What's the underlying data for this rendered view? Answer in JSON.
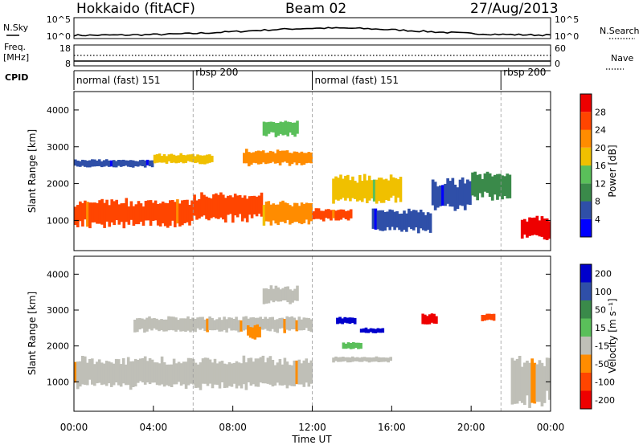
{
  "header": {
    "station": "Hokkaido (fitACF)",
    "beam": "Beam 02",
    "date": "27/Aug/2013"
  },
  "left_labels": {
    "nsky": "N.Sky",
    "freq": "Freq.",
    "freq_unit": "[MHz]",
    "cpid": "CPID",
    "nsky_top": "10^5",
    "nsky_bottom": "10^0",
    "freq_top": "18",
    "freq_bottom": "8"
  },
  "right_labels": {
    "nsearch": "N.Search",
    "nave": "Nave",
    "nsearch_top": "10^5",
    "nsearch_bottom": "10^0",
    "nave_top": "60",
    "nave_bottom": "0"
  },
  "cpid_segments": [
    {
      "label": "normal (fast) 151",
      "start": 0,
      "end": 6
    },
    {
      "label": "rbsp 200",
      "start": 6,
      "end": 12
    },
    {
      "label": "normal (fast) 151",
      "start": 12,
      "end": 21.5
    },
    {
      "label": "rbsp 200",
      "start": 21.5,
      "end": 24
    }
  ],
  "colors": {
    "power": [
      "#0000ff",
      "#2f4fa8",
      "#3a8a4a",
      "#5abf5a",
      "#f0c000",
      "#ff8c00",
      "#ff4500",
      "#ee0000"
    ],
    "velocity": [
      "#ee0000",
      "#ff4500",
      "#ff8c00",
      "#bfbfb7",
      "#5abf5a",
      "#3a8a4a",
      "#2f4fa8",
      "#0000cc"
    ]
  },
  "chart_data": [
    {
      "type": "heatmap",
      "title": "Power",
      "ylabel": "Slant Range [km]",
      "xlabel": "Time UT",
      "xlim": [
        0,
        24
      ],
      "ylim": [
        180,
        4500
      ],
      "yticks": [
        1000,
        2000,
        3000,
        4000
      ],
      "colorbar_label": "Power [dB]",
      "colorbar_ticks": [
        "4",
        "8",
        "12",
        "16",
        "20",
        "24",
        "28"
      ],
      "bands": [
        {
          "t0": 0,
          "t1": 6,
          "r0": 850,
          "r1": 1550,
          "level": 6
        },
        {
          "t0": 6,
          "t1": 9.5,
          "r0": 1000,
          "r1": 1700,
          "level": 6
        },
        {
          "t0": 9.5,
          "t1": 12,
          "r0": 900,
          "r1": 1500,
          "level": 5
        },
        {
          "t0": 0,
          "t1": 4,
          "r0": 2450,
          "r1": 2650,
          "level": 1
        },
        {
          "t0": 4,
          "t1": 7,
          "r0": 2550,
          "r1": 2800,
          "level": 4
        },
        {
          "t0": 8.5,
          "t1": 12,
          "r0": 2500,
          "r1": 2900,
          "level": 5
        },
        {
          "t0": 9.5,
          "t1": 11.3,
          "r0": 3300,
          "r1": 3700,
          "level": 3
        },
        {
          "t0": 12,
          "t1": 14,
          "r0": 1000,
          "r1": 1300,
          "level": 6
        },
        {
          "t0": 13,
          "t1": 16.5,
          "r0": 1500,
          "r1": 2200,
          "level": 4
        },
        {
          "t0": 15,
          "t1": 18,
          "r0": 700,
          "r1": 1300,
          "level": 1
        },
        {
          "t0": 18,
          "t1": 20,
          "r0": 1300,
          "r1": 2100,
          "level": 1
        },
        {
          "t0": 20,
          "t1": 22,
          "r0": 1600,
          "r1": 2300,
          "level": 2
        },
        {
          "t0": 22.5,
          "t1": 24,
          "r0": 500,
          "r1": 1100,
          "level": 7
        }
      ]
    },
    {
      "type": "heatmap",
      "title": "Velocity",
      "ylabel": "Slant Range [km]",
      "xlabel": "Time UT",
      "xlim": [
        0,
        24
      ],
      "ylim": [
        180,
        4500
      ],
      "yticks": [
        1000,
        2000,
        3000,
        4000
      ],
      "xticks": [
        "00:00",
        "04:00",
        "08:00",
        "12:00",
        "16:00",
        "20:00",
        "00:00"
      ],
      "colorbar_label": "Velocity [m s⁻¹]",
      "colorbar_ticks": [
        "200",
        "100",
        "50",
        "15",
        "-15",
        "-50",
        "-100",
        "-200"
      ],
      "bands": [
        {
          "t0": 0,
          "t1": 12,
          "r0": 850,
          "r1": 1650,
          "level": 3
        },
        {
          "t0": 3,
          "t1": 12,
          "r0": 2400,
          "r1": 2800,
          "level": 3
        },
        {
          "t0": 9.5,
          "t1": 11.3,
          "r0": 3200,
          "r1": 3650,
          "level": 3
        },
        {
          "t0": 8.7,
          "t1": 9.4,
          "r0": 2200,
          "r1": 2600,
          "level": 2
        },
        {
          "t0": 13.2,
          "t1": 14.2,
          "r0": 2600,
          "r1": 2800,
          "level": 7
        },
        {
          "t0": 14.4,
          "t1": 15.6,
          "r0": 2350,
          "r1": 2500,
          "level": 7
        },
        {
          "t0": 13,
          "t1": 16,
          "r0": 1550,
          "r1": 1700,
          "level": 3
        },
        {
          "t0": 17.5,
          "t1": 18.3,
          "r0": 2600,
          "r1": 2900,
          "level": 0
        },
        {
          "t0": 20.5,
          "t1": 21.2,
          "r0": 2700,
          "r1": 2900,
          "level": 1
        },
        {
          "t0": 22,
          "t1": 24,
          "r0": 400,
          "r1": 1700,
          "level": 3
        },
        {
          "t0": 13.5,
          "t1": 14.5,
          "r0": 1900,
          "r1": 2100,
          "level": 4
        }
      ]
    }
  ],
  "xaxis_title": "Time UT"
}
